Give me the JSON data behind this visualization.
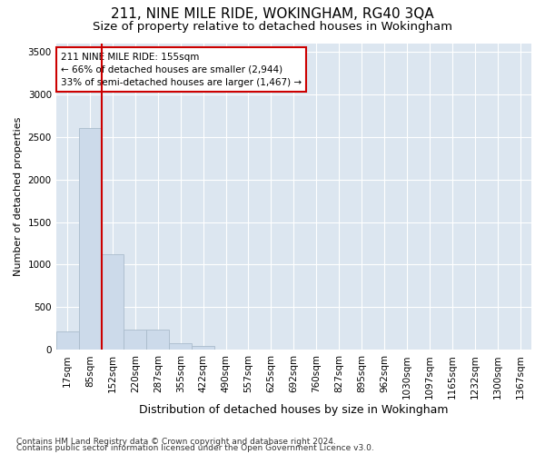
{
  "title1": "211, NINE MILE RIDE, WOKINGHAM, RG40 3QA",
  "title2": "Size of property relative to detached houses in Wokingham",
  "xlabel": "Distribution of detached houses by size in Wokingham",
  "ylabel": "Number of detached properties",
  "categories": [
    "17sqm",
    "85sqm",
    "152sqm",
    "220sqm",
    "287sqm",
    "355sqm",
    "422sqm",
    "490sqm",
    "557sqm",
    "625sqm",
    "692sqm",
    "760sqm",
    "827sqm",
    "895sqm",
    "962sqm",
    "1030sqm",
    "1097sqm",
    "1165sqm",
    "1232sqm",
    "1300sqm",
    "1367sqm"
  ],
  "values": [
    220,
    2600,
    1120,
    240,
    240,
    80,
    45,
    0,
    0,
    0,
    0,
    0,
    0,
    0,
    0,
    0,
    0,
    0,
    0,
    0,
    0
  ],
  "bar_color": "#ccdaea",
  "bar_edge_color": "#aabccc",
  "vline_color": "#cc0000",
  "annotation_text": "211 NINE MILE RIDE: 155sqm\n← 66% of detached houses are smaller (2,944)\n33% of semi-detached houses are larger (1,467) →",
  "annotation_box_color": "#cc0000",
  "ylim": [
    0,
    3600
  ],
  "yticks": [
    0,
    500,
    1000,
    1500,
    2000,
    2500,
    3000,
    3500
  ],
  "grid_color": "#ffffff",
  "background_color": "#dce6f0",
  "footer1": "Contains HM Land Registry data © Crown copyright and database right 2024.",
  "footer2": "Contains public sector information licensed under the Open Government Licence v3.0.",
  "title1_fontsize": 11,
  "title2_fontsize": 9.5,
  "xlabel_fontsize": 9,
  "ylabel_fontsize": 8,
  "tick_fontsize": 7.5,
  "footer_fontsize": 6.5
}
